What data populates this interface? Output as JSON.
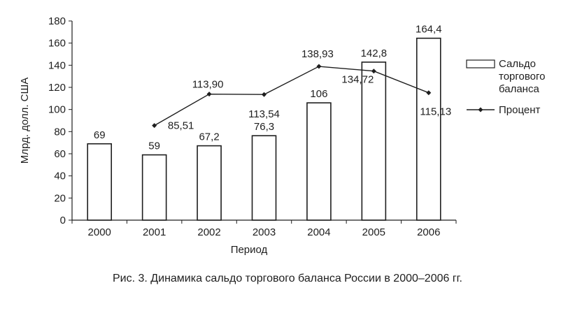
{
  "chart_data": {
    "type": "bar",
    "categories": [
      "2000",
      "2001",
      "2002",
      "2003",
      "2004",
      "2005",
      "2006"
    ],
    "series": [
      {
        "name": "Сальдо торгового баланса",
        "kind": "bar",
        "values": [
          69,
          59,
          67.2,
          76.3,
          106,
          142.8,
          164.4
        ],
        "labels": [
          "69",
          "59",
          "67,2",
          "76,3",
          "106",
          "142,8",
          "164,4"
        ]
      },
      {
        "name": "Процент",
        "kind": "line",
        "values": [
          null,
          85.51,
          113.9,
          113.54,
          138.93,
          134.72,
          115.13
        ],
        "labels": [
          "",
          "85,51",
          "113,90",
          "113,54",
          "138,93",
          "134,72",
          "115,13"
        ]
      }
    ],
    "ylim": [
      0,
      180
    ],
    "yticks": [
      "0",
      "20",
      "40",
      "60",
      "80",
      "100",
      "120",
      "140",
      "160",
      "180"
    ],
    "ylabel": "Млрд. долл. США",
    "xlabel": "Период",
    "legend_position": "right",
    "grid": false
  },
  "caption": "Рис. 3. Динамика сальдо торгового баланса России в 2000–2006 гг.",
  "colors": {
    "ink": "#1e1e1e",
    "bar_fill": "#ffffff"
  }
}
